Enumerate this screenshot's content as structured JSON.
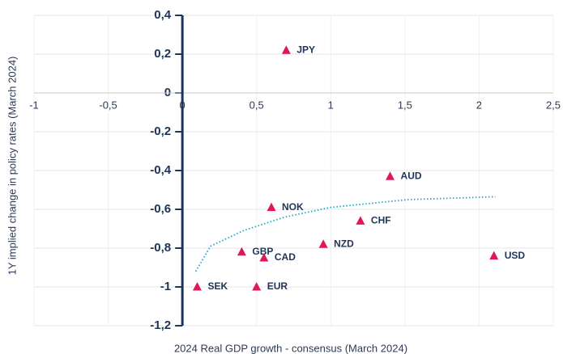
{
  "chart_data": {
    "type": "scatter",
    "xlabel": "2024 Real GDP growth - consensus (March 2024)",
    "ylabel": "1Y implied change in policy rates (March 2024)",
    "labels": [
      "JPY",
      "AUD",
      "NOK",
      "CHF",
      "NZD",
      "GBP",
      "CAD",
      "USD",
      "SEK",
      "EUR"
    ],
    "x": [
      0.7,
      1.4,
      0.6,
      1.2,
      0.95,
      0.4,
      0.55,
      2.1,
      0.1,
      0.5
    ],
    "values": [
      0.22,
      -0.43,
      -0.59,
      -0.66,
      -0.78,
      -0.82,
      -0.85,
      -0.84,
      -1.0,
      -1.0
    ],
    "color": "#e0185a",
    "trendline": {
      "color": "#1aa7c9",
      "x": [
        0.09,
        0.19,
        0.41,
        0.69,
        1.0,
        1.52,
        2.11
      ],
      "values": [
        -0.92,
        -0.79,
        -0.71,
        -0.64,
        -0.59,
        -0.55,
        -0.535
      ]
    },
    "xlim": [
      -1,
      2.5
    ],
    "xticks": [
      {
        "value": -1,
        "label": "-1"
      },
      {
        "value": -0.5,
        "label": "-0,5"
      },
      {
        "value": 0,
        "label": "0"
      },
      {
        "value": 0.5,
        "label": "0,5"
      },
      {
        "value": 1,
        "label": "1"
      },
      {
        "value": 1.5,
        "label": "1,5"
      },
      {
        "value": 2,
        "label": "2"
      },
      {
        "value": 2.5,
        "label": "2,5"
      }
    ],
    "ylim": [
      -1.2,
      0.4
    ],
    "yticks": [
      {
        "value": 0.4,
        "label": "0,4"
      },
      {
        "value": 0.2,
        "label": "0,2"
      },
      0,
      {
        "value": -0.2,
        "label": "-0,2"
      },
      {
        "value": -0.4,
        "label": "-0,4"
      },
      {
        "value": -0.6,
        "label": "-0,6"
      },
      {
        "value": -0.8,
        "label": "-0,8"
      },
      -1,
      {
        "value": -1.2,
        "label": "-1,2"
      }
    ],
    "grid": true
  }
}
